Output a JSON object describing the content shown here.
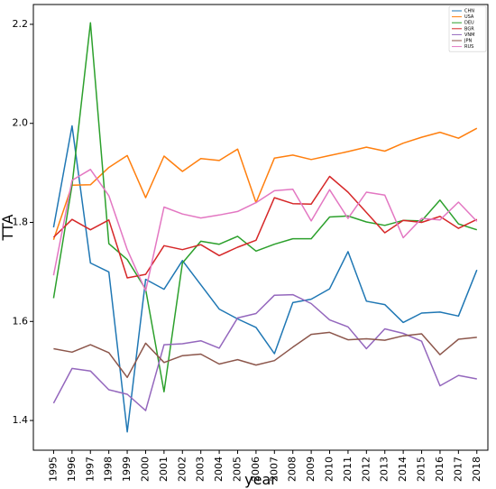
{
  "chart_data": {
    "type": "line",
    "xlabel": "year",
    "ylabel": "TTA",
    "x": [
      1995,
      1996,
      1997,
      1998,
      1999,
      2000,
      2001,
      2002,
      2003,
      2004,
      2005,
      2006,
      2007,
      2008,
      2009,
      2010,
      2011,
      2012,
      2013,
      2014,
      2015,
      2016,
      2017,
      2018
    ],
    "x_ticks": [
      "1995",
      "1996",
      "1997",
      "1998",
      "1999",
      "2000",
      "2001",
      "2002",
      "2003",
      "2004",
      "2005",
      "2006",
      "2007",
      "2008",
      "2009",
      "2010",
      "2011",
      "2012",
      "2013",
      "2014",
      "2015",
      "2016",
      "2017",
      "2018"
    ],
    "y_ticks": [
      "1.4",
      "1.6",
      "1.8",
      "2.0",
      "2.2"
    ],
    "y_tick_values": [
      1.4,
      1.6,
      1.8,
      2.0,
      2.2
    ],
    "xlim": [
      1993.9,
      2018.6
    ],
    "ylim": [
      1.34,
      2.24
    ],
    "grid": false,
    "legend_position": "top-right",
    "series": [
      {
        "name": "CHN",
        "color": "#1f77b4",
        "values": [
          1.79,
          1.995,
          1.718,
          1.7,
          1.377,
          1.685,
          1.665,
          1.723,
          1.674,
          1.625,
          1.605,
          1.588,
          1.535,
          1.638,
          1.645,
          1.666,
          1.741,
          1.641,
          1.634,
          1.598,
          1.617,
          1.619,
          1.611,
          1.704
        ]
      },
      {
        "name": "USA",
        "color": "#ff7f0e",
        "values": [
          1.765,
          1.875,
          1.876,
          1.911,
          1.935,
          1.85,
          1.934,
          1.903,
          1.929,
          1.925,
          1.948,
          1.84,
          1.93,
          1.936,
          1.927,
          1.935,
          1.943,
          1.952,
          1.944,
          1.96,
          1.972,
          1.982,
          1.97,
          1.99
        ]
      },
      {
        "name": "DEU",
        "color": "#2ca02c",
        "values": [
          1.647,
          1.875,
          2.203,
          1.757,
          1.725,
          1.665,
          1.458,
          1.718,
          1.762,
          1.756,
          1.772,
          1.742,
          1.756,
          1.767,
          1.767,
          1.811,
          1.813,
          1.801,
          1.794,
          1.804,
          1.803,
          1.845,
          1.797,
          1.785
        ]
      },
      {
        "name": "BGR",
        "color": "#d62728",
        "values": [
          1.77,
          1.806,
          1.785,
          1.805,
          1.688,
          1.695,
          1.753,
          1.745,
          1.755,
          1.733,
          1.75,
          1.764,
          1.85,
          1.838,
          1.837,
          1.893,
          1.861,
          1.82,
          1.779,
          1.804,
          1.8,
          1.812,
          1.788,
          1.806
        ]
      },
      {
        "name": "VNM",
        "color": "#9467bd",
        "values": [
          1.435,
          1.505,
          1.5,
          1.462,
          1.453,
          1.42,
          1.553,
          1.555,
          1.561,
          1.546,
          1.607,
          1.616,
          1.653,
          1.654,
          1.636,
          1.603,
          1.589,
          1.545,
          1.585,
          1.576,
          1.56,
          1.47,
          1.491,
          1.484
        ]
      },
      {
        "name": "JPN",
        "color": "#8c564b",
        "values": [
          1.545,
          1.538,
          1.553,
          1.537,
          1.487,
          1.556,
          1.517,
          1.531,
          1.534,
          1.514,
          1.523,
          1.512,
          1.521,
          1.548,
          1.574,
          1.578,
          1.563,
          1.565,
          1.562,
          1.571,
          1.575,
          1.533,
          1.564,
          1.568
        ]
      },
      {
        "name": "RUS",
        "color": "#e377c2",
        "values": [
          1.693,
          1.885,
          1.907,
          1.854,
          1.745,
          1.662,
          1.831,
          1.817,
          1.809,
          1.815,
          1.822,
          1.84,
          1.864,
          1.867,
          1.803,
          1.866,
          1.808,
          1.861,
          1.855,
          1.769,
          1.808,
          1.805,
          1.841,
          1.802
        ]
      }
    ]
  }
}
